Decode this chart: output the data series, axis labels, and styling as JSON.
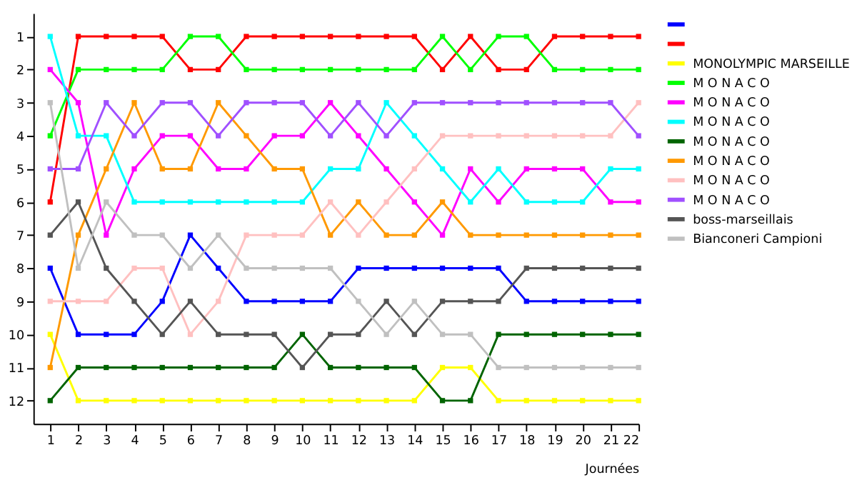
{
  "chart_data": {
    "type": "line",
    "xlabel": "Journées",
    "xlim": [
      0.4,
      22
    ],
    "ylim": [
      12.7,
      0.3
    ],
    "xticks": [
      1,
      2,
      3,
      4,
      5,
      6,
      7,
      8,
      9,
      10,
      11,
      12,
      13,
      14,
      15,
      16,
      17,
      18,
      19,
      20,
      21,
      22
    ],
    "yticks": [
      1,
      2,
      3,
      4,
      5,
      6,
      7,
      8,
      9,
      10,
      11,
      12
    ],
    "x": [
      1,
      2,
      3,
      4,
      5,
      6,
      7,
      8,
      9,
      10,
      11,
      12,
      13,
      14,
      15,
      16,
      17,
      18,
      19,
      20,
      21,
      22
    ],
    "grid": false,
    "legend": "right",
    "marker": "square",
    "line_style": "solid",
    "series": [
      {
        "name": null,
        "color": "#0000ff",
        "values": [
          8,
          10,
          10,
          10,
          9,
          7,
          8,
          9,
          9,
          9,
          9,
          8,
          8,
          8,
          8,
          8,
          8,
          9,
          9,
          9,
          9,
          9
        ]
      },
      {
        "name": null,
        "color": "#ff0000",
        "values": [
          6,
          1,
          1,
          1,
          1,
          2,
          2,
          1,
          1,
          1,
          1,
          1,
          1,
          1,
          2,
          1,
          2,
          2,
          1,
          1,
          1,
          1
        ]
      },
      {
        "name": "MONOLYMPIC MARSEILLE",
        "color": "#ffff00",
        "values": [
          10,
          12,
          12,
          12,
          12,
          12,
          12,
          12,
          12,
          12,
          12,
          12,
          12,
          12,
          11,
          11,
          12,
          12,
          12,
          12,
          12,
          12
        ]
      },
      {
        "name": "M O N A C O",
        "color": "#00ff00",
        "values": [
          4,
          2,
          2,
          2,
          2,
          1,
          1,
          2,
          2,
          2,
          2,
          2,
          2,
          2,
          1,
          2,
          1,
          1,
          2,
          2,
          2,
          2
        ]
      },
      {
        "name": "M O N A C O",
        "color": "#ff00ff",
        "values": [
          2,
          3,
          7,
          5,
          4,
          4,
          5,
          5,
          4,
          4,
          3,
          4,
          5,
          6,
          7,
          5,
          6,
          5,
          5,
          5,
          6,
          6
        ]
      },
      {
        "name": "M O N A C O",
        "color": "#00ffff",
        "values": [
          1,
          4,
          4,
          6,
          6,
          6,
          6,
          6,
          6,
          6,
          5,
          5,
          3,
          4,
          5,
          6,
          5,
          6,
          6,
          6,
          5,
          5
        ]
      },
      {
        "name": "M O N A C O",
        "color": "#006400",
        "values": [
          12,
          11,
          11,
          11,
          11,
          11,
          11,
          11,
          11,
          10,
          11,
          11,
          11,
          11,
          12,
          12,
          10,
          10,
          10,
          10,
          10,
          10
        ]
      },
      {
        "name": "M O N A C O",
        "color": "#ff9900",
        "values": [
          11,
          7,
          5,
          3,
          5,
          5,
          3,
          4,
          5,
          5,
          7,
          6,
          7,
          7,
          6,
          7,
          7,
          7,
          7,
          7,
          7,
          7
        ]
      },
      {
        "name": "M O N A C O",
        "color": "#ffc0c0",
        "values": [
          9,
          9,
          9,
          8,
          8,
          10,
          9,
          7,
          7,
          7,
          6,
          7,
          6,
          5,
          4,
          4,
          4,
          4,
          4,
          4,
          4,
          3
        ]
      },
      {
        "name": "M O N A C O",
        "color": "#a050ff",
        "values": [
          5,
          5,
          3,
          4,
          3,
          3,
          4,
          3,
          3,
          3,
          4,
          3,
          4,
          3,
          3,
          3,
          3,
          3,
          3,
          3,
          3,
          4
        ]
      },
      {
        "name": "boss-marseillais",
        "color": "#555555",
        "values": [
          7,
          6,
          8,
          9,
          10,
          9,
          10,
          10,
          10,
          11,
          10,
          10,
          9,
          10,
          9,
          9,
          9,
          8,
          8,
          8,
          8,
          8
        ]
      },
      {
        "name": "Bianconeri Campioni",
        "color": "#c0c0c0",
        "values": [
          3,
          8,
          6,
          7,
          7,
          8,
          7,
          8,
          8,
          8,
          8,
          9,
          10,
          9,
          10,
          10,
          11,
          11,
          11,
          11,
          11,
          11
        ]
      }
    ]
  }
}
